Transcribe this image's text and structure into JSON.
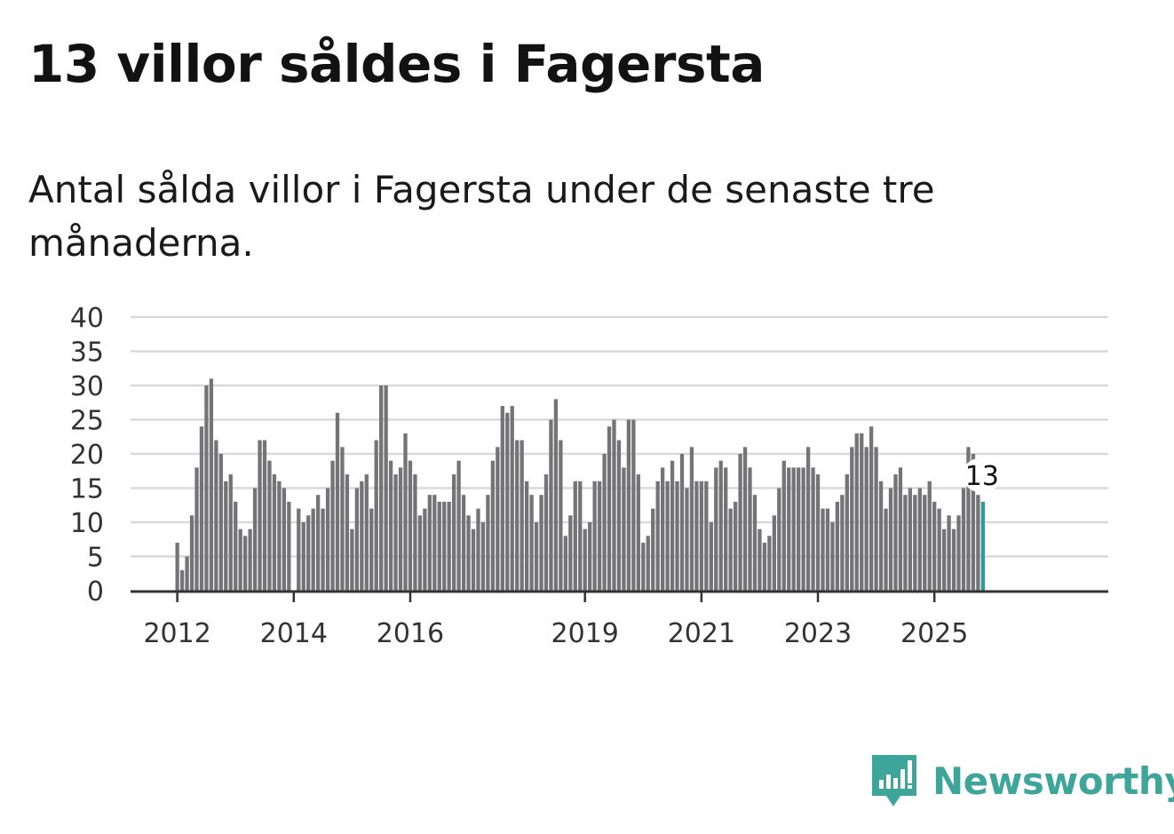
{
  "title": "13 villor såldes i Fagersta",
  "subtitle": "Antal sålda villor i Fagersta under de senaste tre månaderna.",
  "brand": "Newsworthy",
  "colors": {
    "bar": "#747477",
    "highlight": "#2a9d97",
    "brand": "#3ea59a"
  },
  "chart_data": {
    "type": "bar",
    "title": "Antal sålda villor i Fagersta under de senaste tre månaderna.",
    "xlabel": "",
    "ylabel": "",
    "ylim": [
      0,
      40
    ],
    "yticks": [
      0,
      5,
      10,
      15,
      20,
      25,
      30,
      35,
      40
    ],
    "x_tick_labels": [
      "2012",
      "2014",
      "2016",
      "2019",
      "2021",
      "2023",
      "2025"
    ],
    "x_tick_label_bar_index": [
      0,
      24,
      48,
      84,
      108,
      132,
      156
    ],
    "highlight_label": "13",
    "values": [
      7,
      3,
      5,
      11,
      18,
      24,
      30,
      31,
      22,
      20,
      16,
      17,
      13,
      9,
      8,
      9,
      15,
      22,
      22,
      19,
      17,
      16,
      15,
      13,
      0,
      12,
      10,
      11,
      12,
      14,
      12,
      15,
      19,
      26,
      21,
      17,
      9,
      15,
      16,
      17,
      12,
      22,
      30,
      30,
      19,
      17,
      18,
      23,
      19,
      17,
      11,
      12,
      14,
      14,
      13,
      13,
      13,
      17,
      19,
      14,
      11,
      9,
      12,
      10,
      14,
      19,
      21,
      27,
      26,
      27,
      22,
      22,
      16,
      14,
      10,
      14,
      17,
      25,
      28,
      22,
      8,
      11,
      16,
      16,
      9,
      10,
      16,
      16,
      20,
      24,
      25,
      22,
      18,
      25,
      25,
      17,
      7,
      8,
      12,
      16,
      18,
      16,
      19,
      16,
      20,
      15,
      21,
      16,
      16,
      16,
      10,
      18,
      19,
      18,
      12,
      13,
      20,
      21,
      18,
      14,
      9,
      7,
      8,
      11,
      15,
      19,
      18,
      18,
      18,
      18,
      21,
      18,
      17,
      12,
      12,
      10,
      13,
      14,
      17,
      21,
      23,
      23,
      21,
      24,
      21,
      16,
      12,
      15,
      17,
      18,
      14,
      15,
      14,
      15,
      14,
      16,
      13,
      12,
      9,
      11,
      9,
      11,
      15,
      21,
      20,
      14,
      13
    ]
  }
}
